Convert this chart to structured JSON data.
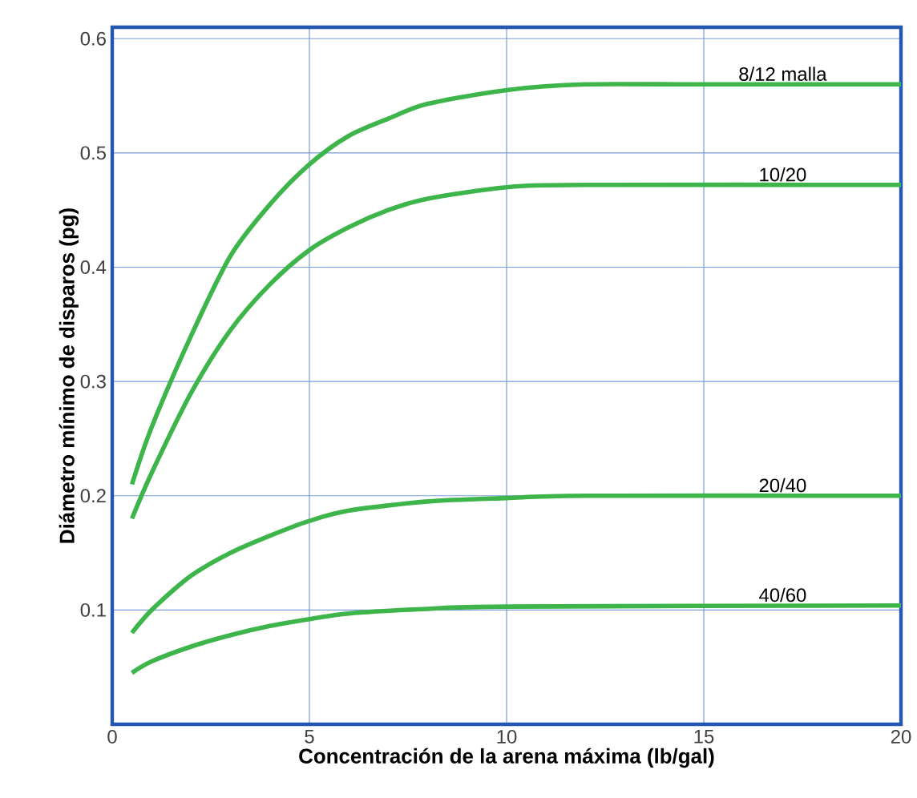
{
  "chart_data": {
    "type": "line",
    "xlabel": "Concentración de la arena máxima (lb/gal)",
    "ylabel": "Diámetro mínimo de disparos (pg)",
    "xlim": [
      0,
      20
    ],
    "ylim": [
      0,
      0.61
    ],
    "xticks": [
      0,
      5,
      10,
      15,
      20
    ],
    "yticks": [
      0.1,
      0.2,
      0.3,
      0.4,
      0.5,
      0.6
    ],
    "grid": true,
    "series": [
      {
        "name": "8/12 malla",
        "color": "#3db54a",
        "x": [
          0.5,
          1,
          2,
          3,
          4,
          5,
          6,
          7,
          8,
          10,
          12,
          15,
          20
        ],
        "values": [
          0.21,
          0.26,
          0.34,
          0.41,
          0.455,
          0.49,
          0.515,
          0.53,
          0.543,
          0.555,
          0.56,
          0.56,
          0.56
        ]
      },
      {
        "name": "10/20",
        "color": "#3db54a",
        "x": [
          0.5,
          1,
          2,
          3,
          4,
          5,
          6,
          7,
          8,
          10,
          12,
          20
        ],
        "values": [
          0.18,
          0.22,
          0.29,
          0.345,
          0.385,
          0.415,
          0.435,
          0.45,
          0.46,
          0.47,
          0.472,
          0.472
        ]
      },
      {
        "name": "20/40",
        "color": "#3db54a",
        "x": [
          0.5,
          1,
          2,
          3,
          4,
          5,
          6,
          8,
          10,
          12,
          20
        ],
        "values": [
          0.08,
          0.1,
          0.13,
          0.15,
          0.165,
          0.178,
          0.187,
          0.195,
          0.198,
          0.2,
          0.2
        ]
      },
      {
        "name": "40/60",
        "color": "#3db54a",
        "x": [
          0.5,
          1,
          2,
          3,
          4,
          5,
          6,
          8,
          10,
          20
        ],
        "values": [
          0.045,
          0.055,
          0.068,
          0.078,
          0.086,
          0.092,
          0.097,
          0.101,
          0.103,
          0.104
        ]
      }
    ]
  }
}
